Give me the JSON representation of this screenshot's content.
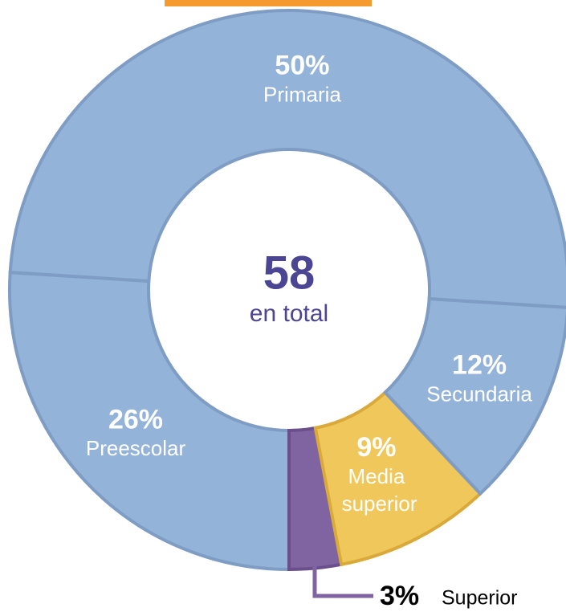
{
  "chart_data": {
    "type": "donut",
    "center_value": "58",
    "center_label": "en total",
    "categories": [
      "Primaria",
      "Secundaria",
      "Media superior",
      "Superior",
      "Preescolar"
    ],
    "values": [
      50,
      12,
      9,
      3,
      26
    ],
    "value_labels": [
      "50%",
      "12%",
      "9%",
      "3%",
      "26%"
    ],
    "colors": [
      "#94b3d9",
      "#94b3d9",
      "#f0c75a",
      "#8064a2",
      "#94b3d9"
    ]
  }
}
